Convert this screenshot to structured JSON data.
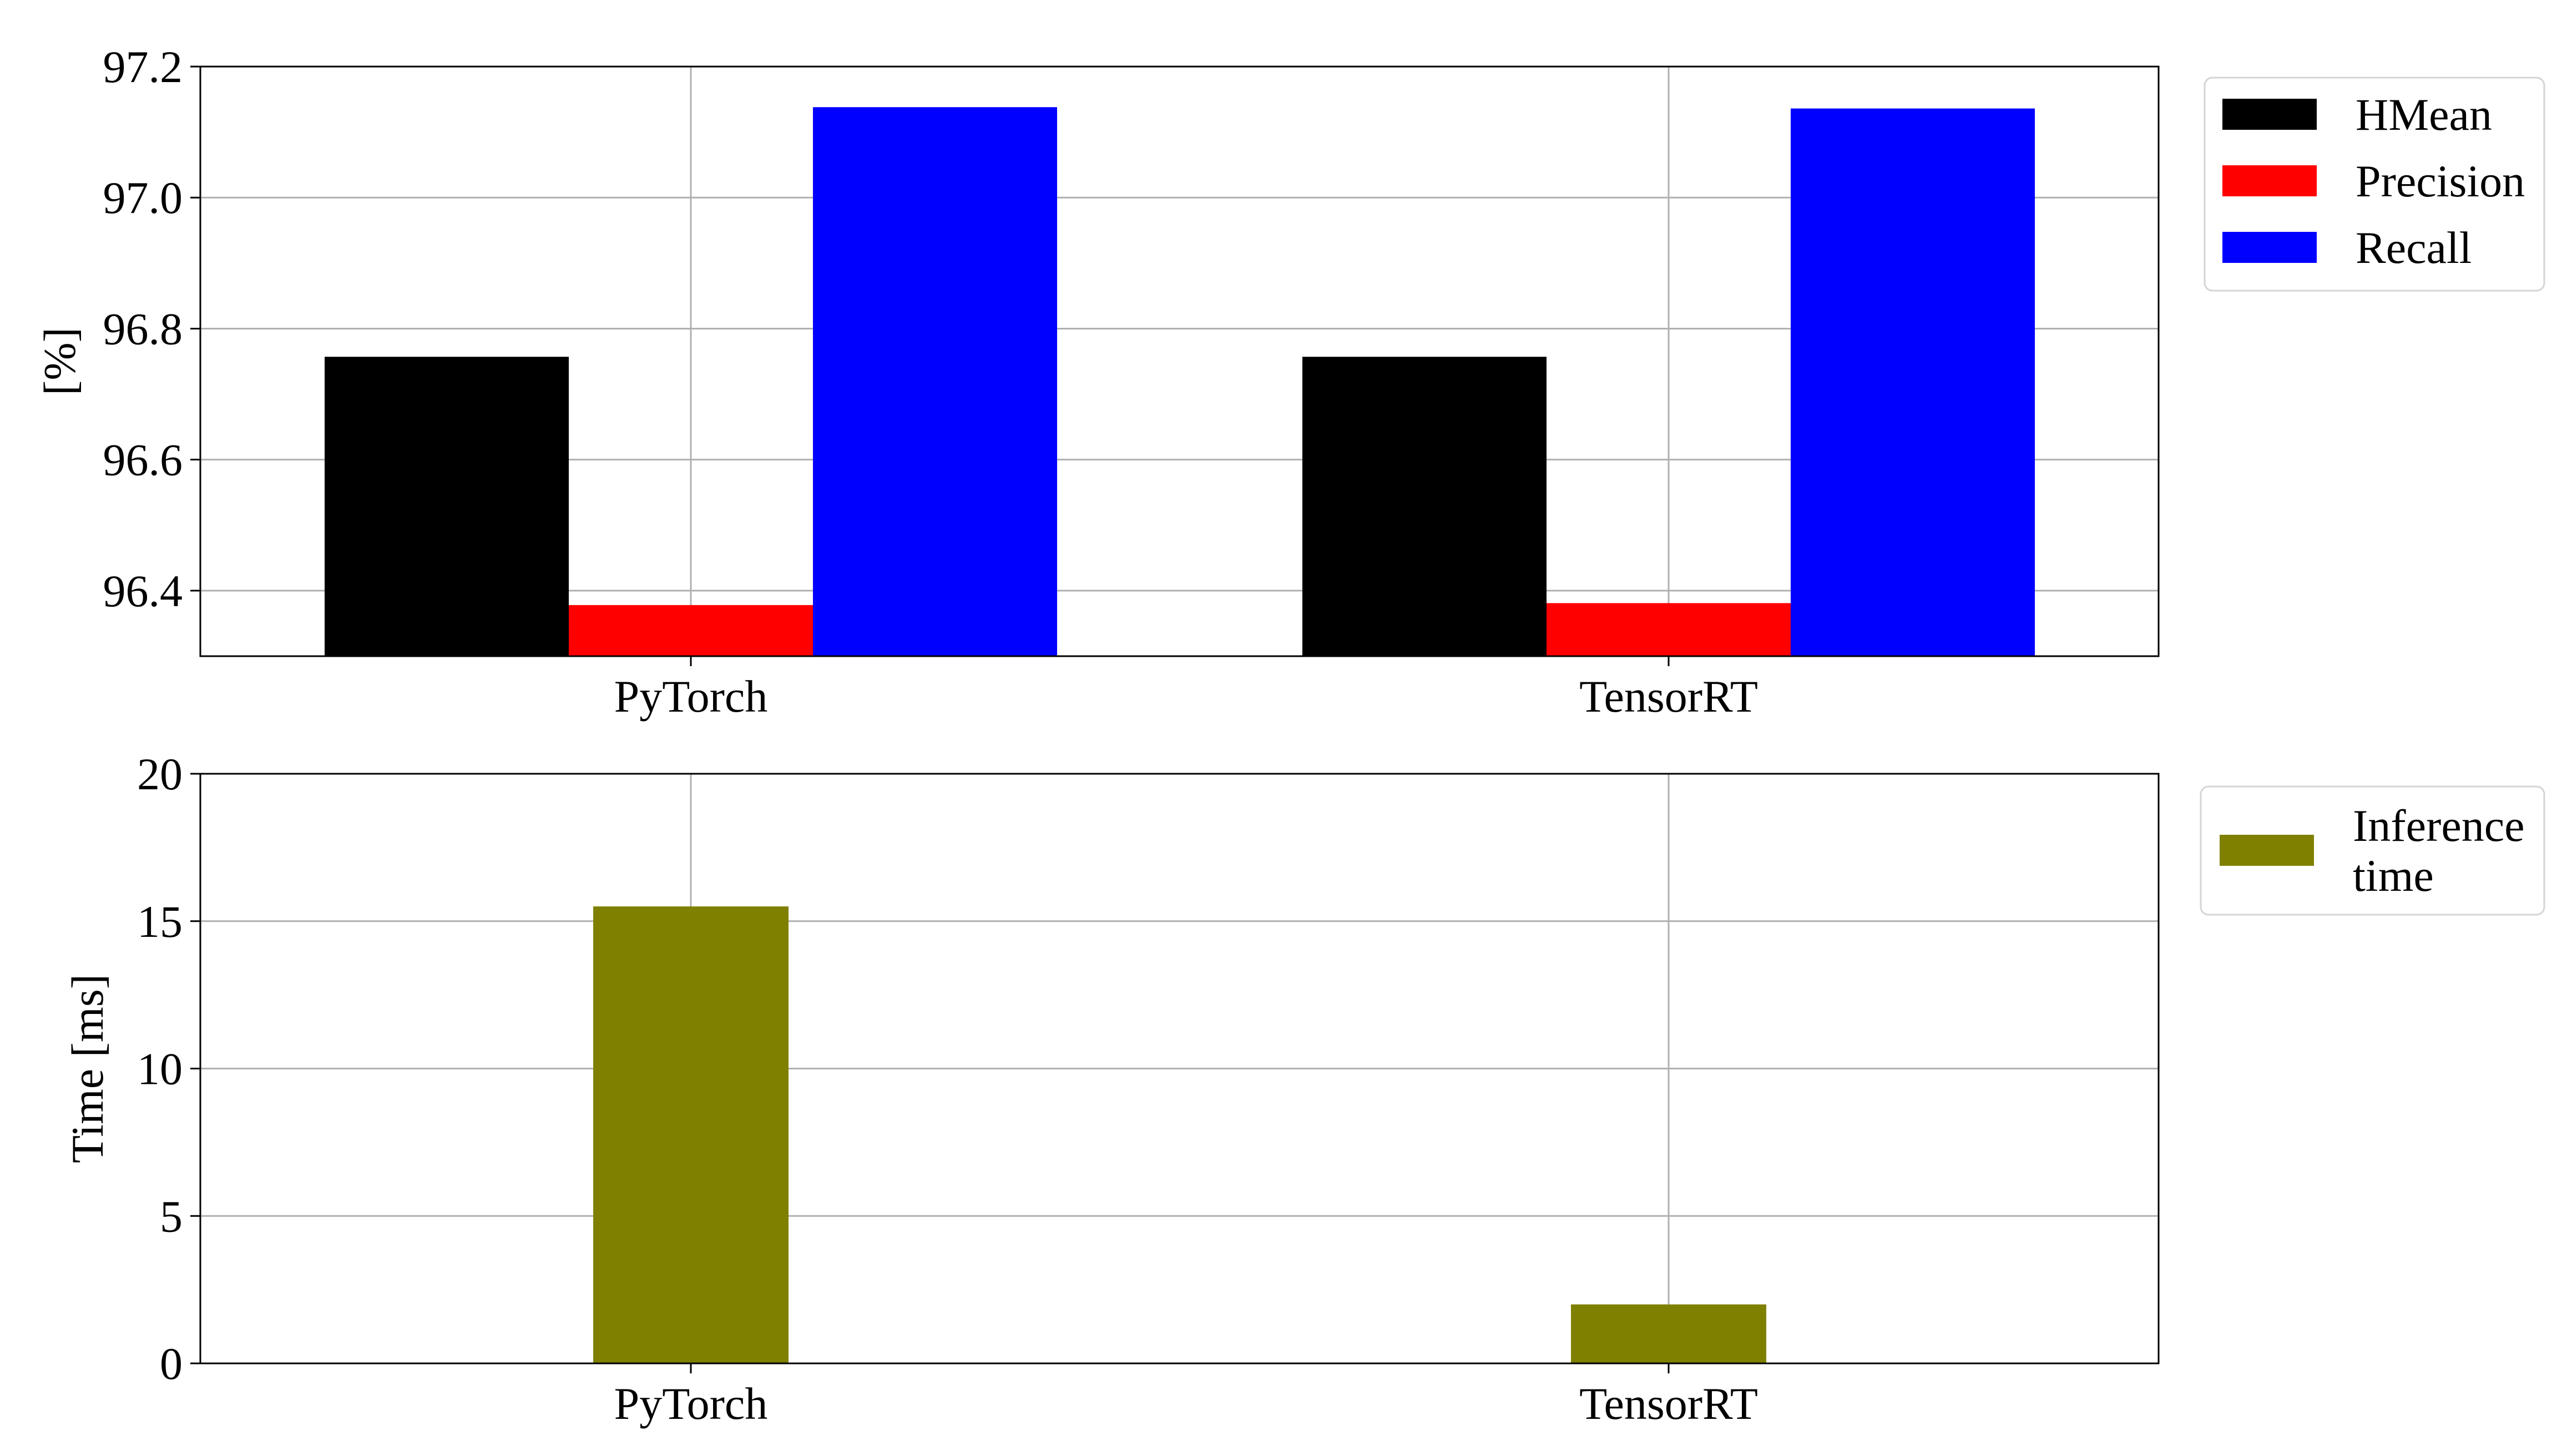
{
  "chart_data": [
    {
      "type": "bar",
      "categories": [
        "PyTorch",
        "TensorRT"
      ],
      "series": [
        {
          "name": "HMean",
          "values": [
            96.757,
            96.757
          ],
          "color": "#000000"
        },
        {
          "name": "Precision",
          "values": [
            96.378,
            96.381
          ],
          "color": "#ff0000"
        },
        {
          "name": "Recall",
          "values": [
            97.138,
            97.136
          ],
          "color": "#0000ff"
        }
      ],
      "title": "",
      "xlabel": "",
      "ylabel": "[%]",
      "ylim": [
        96.3,
        97.2
      ],
      "yticks": [
        96.4,
        96.6,
        96.8,
        97.0,
        97.2
      ],
      "ytick_labels": [
        "96.4",
        "96.6",
        "96.8",
        "97.0",
        "97.2"
      ],
      "grid": true,
      "legend": {
        "placement": "outside-right",
        "entries": [
          "HMean",
          "Precision",
          "Recall"
        ]
      }
    },
    {
      "type": "bar",
      "categories": [
        "PyTorch",
        "TensorRT"
      ],
      "series": [
        {
          "name": "Inference time",
          "legend_lines": [
            "Inference",
            "time"
          ],
          "values": [
            15.5,
            2.0
          ],
          "color": "#808000"
        }
      ],
      "title": "",
      "xlabel": "",
      "ylabel": "Time [ms]",
      "ylim": [
        0,
        20
      ],
      "yticks": [
        0,
        5,
        10,
        15,
        20
      ],
      "ytick_labels": [
        "0",
        "5",
        "10",
        "15",
        "20"
      ],
      "grid": true,
      "legend": {
        "placement": "outside-right",
        "entries": [
          "Inference time"
        ]
      }
    }
  ]
}
